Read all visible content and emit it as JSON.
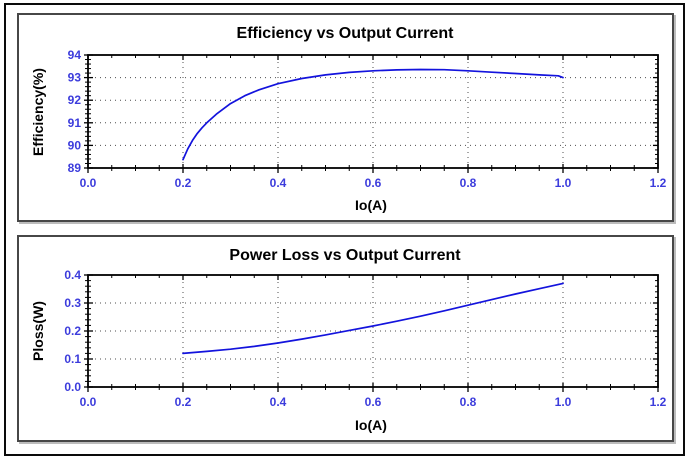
{
  "colors": {
    "curve": "#1313dd",
    "tick_label": "#3c3cdc",
    "axis": "#000000",
    "grid_dot": "#4d4d4d",
    "panel_border": "#474747",
    "background": "#ffffff"
  },
  "chart_data": [
    {
      "type": "line",
      "title": "Efficiency vs Output Current",
      "xlabel": "Io(A)",
      "ylabel": "Efficiency(%)",
      "xlim": [
        0,
        1.2
      ],
      "ylim": [
        89,
        94
      ],
      "xticks": [
        0,
        0.2,
        0.4,
        0.6,
        0.8,
        1.0,
        1.2
      ],
      "xtick_labels": [
        "0.0",
        "0.2",
        "0.4",
        "0.6",
        "0.8",
        "1.0",
        "1.2"
      ],
      "yticks": [
        89,
        90,
        91,
        92,
        93,
        94
      ],
      "ytick_labels": [
        "89",
        "90",
        "91",
        "92",
        "93",
        "94"
      ],
      "x_minor_step": 0.05,
      "y_minor_step": 0.2,
      "grid": "dotted",
      "legend": "none",
      "series": [
        {
          "name": "efficiency",
          "x": [
            0.2,
            0.21,
            0.22,
            0.23,
            0.24,
            0.25,
            0.27,
            0.3,
            0.33,
            0.36,
            0.4,
            0.45,
            0.5,
            0.55,
            0.6,
            0.65,
            0.7,
            0.75,
            0.8,
            0.85,
            0.9,
            0.95,
            0.99,
            1.0
          ],
          "y": [
            89.37,
            89.85,
            90.22,
            90.53,
            90.78,
            91.0,
            91.38,
            91.85,
            92.2,
            92.46,
            92.73,
            92.96,
            93.12,
            93.23,
            93.3,
            93.34,
            93.36,
            93.35,
            93.3,
            93.24,
            93.18,
            93.12,
            93.08,
            93.0
          ]
        }
      ]
    },
    {
      "type": "line",
      "title": "Power Loss vs Output Current",
      "xlabel": "Io(A)",
      "ylabel": "Ploss(W)",
      "xlim": [
        0,
        1.2
      ],
      "ylim": [
        0,
        0.4
      ],
      "xticks": [
        0,
        0.2,
        0.4,
        0.6,
        0.8,
        1.0,
        1.2
      ],
      "xtick_labels": [
        "0.0",
        "0.2",
        "0.4",
        "0.6",
        "0.8",
        "1.0",
        "1.2"
      ],
      "yticks": [
        0,
        0.1,
        0.2,
        0.3,
        0.4
      ],
      "ytick_labels": [
        "0.0",
        "0.1",
        "0.2",
        "0.3",
        "0.4"
      ],
      "x_minor_step": 0.05,
      "y_minor_step": 0.02,
      "grid": "dotted",
      "legend": "none",
      "series": [
        {
          "name": "power-loss",
          "x": [
            0.2,
            0.25,
            0.3,
            0.35,
            0.4,
            0.45,
            0.5,
            0.55,
            0.6,
            0.65,
            0.7,
            0.75,
            0.8,
            0.85,
            0.9,
            0.95,
            1.0
          ],
          "y": [
            0.12,
            0.127,
            0.135,
            0.145,
            0.157,
            0.171,
            0.186,
            0.202,
            0.218,
            0.235,
            0.253,
            0.272,
            0.292,
            0.312,
            0.332,
            0.351,
            0.37
          ]
        }
      ]
    }
  ]
}
